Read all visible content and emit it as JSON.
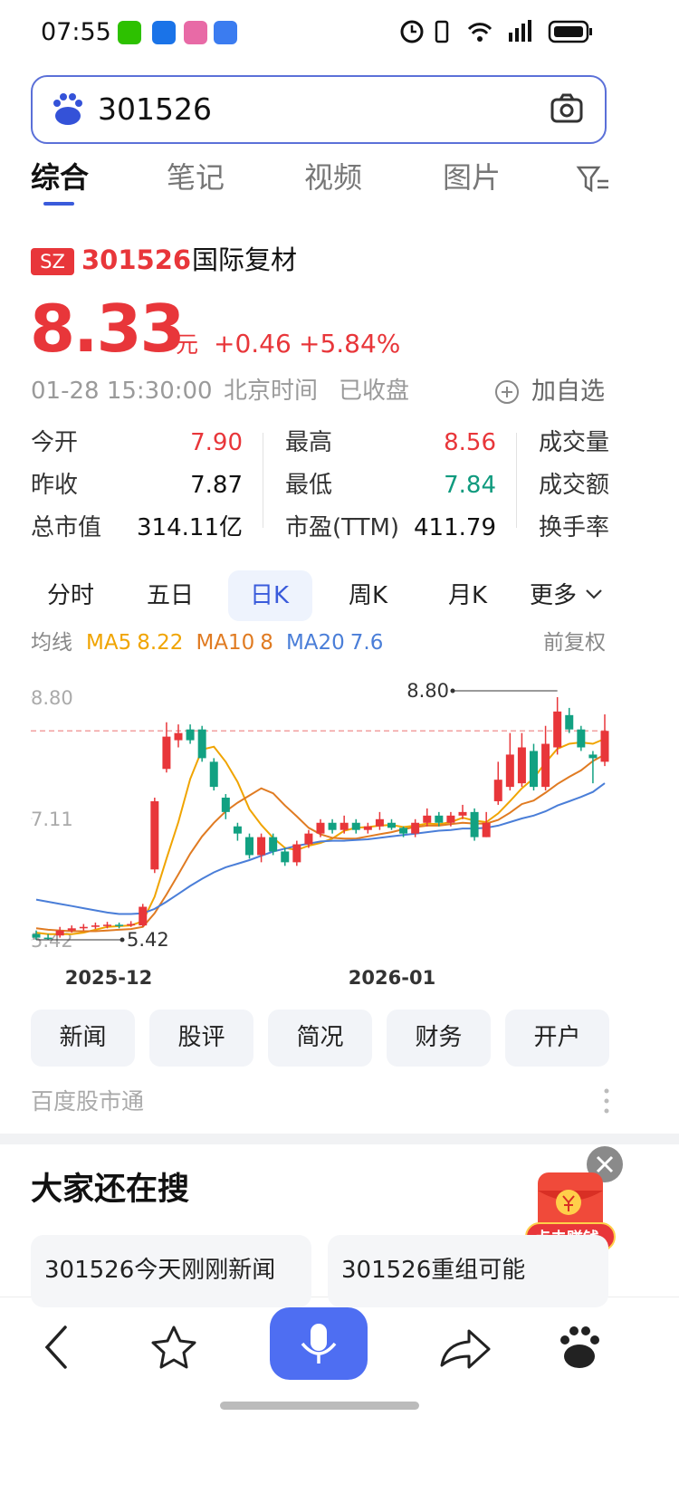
{
  "status_bar": {
    "time": "07:55"
  },
  "search": {
    "query": "301526"
  },
  "tabs": [
    "综合",
    "笔记",
    "视频",
    "图片"
  ],
  "stock": {
    "market": "SZ",
    "code": "301526",
    "name": "国际复材",
    "price": "8.33",
    "unit": "元",
    "change": "+0.46",
    "change_pct": "+5.84%",
    "time": "01-28 15:30:00",
    "timezone": "北京时间",
    "status": "已收盘",
    "watch": "加自选",
    "stats": [
      {
        "label": "今开",
        "value": "7.90",
        "color": "#e8363a"
      },
      {
        "label": "最高",
        "value": "8.56",
        "color": "#e8363a"
      },
      {
        "label": "成交量"
      },
      {
        "label": "昨收",
        "value": "7.87",
        "color": "#111111"
      },
      {
        "label": "最低",
        "value": "7.84",
        "color": "#0f9a7e"
      },
      {
        "label": "成交额"
      },
      {
        "label": "总市值",
        "value": "314.11亿",
        "color": "#111111"
      },
      {
        "label": "市盈(TTM)",
        "value": "411.79",
        "color": "#111111"
      },
      {
        "label": "换手率"
      }
    ]
  },
  "chart_tabs": {
    "items": [
      "分时",
      "五日",
      "日K",
      "周K",
      "月K",
      "更多"
    ],
    "active": 2
  },
  "chart_data": {
    "type": "candlestick",
    "ma_label": "均线",
    "adjust": "前复权",
    "up_color": "#e8363a",
    "down_color": "#12a182",
    "open": [
      5.5,
      5.45,
      5.48,
      5.55,
      5.58,
      5.6,
      5.62,
      5.63,
      5.62,
      5.62,
      6.4,
      7.8,
      8.2,
      8.35,
      8.35,
      7.9,
      7.4,
      7.0,
      6.85,
      6.6,
      6.85,
      6.65,
      6.5,
      6.75,
      6.9,
      7.05,
      6.95,
      7.05,
      6.95,
      7.0,
      7.05,
      6.98,
      6.9,
      7.05,
      7.15,
      7.05,
      7.15,
      7.2,
      6.85,
      7.35,
      7.55,
      7.6,
      8.05,
      7.55,
      8.1,
      8.55,
      8.35,
      8.0,
      7.9
    ],
    "close": [
      5.45,
      5.44,
      5.55,
      5.58,
      5.6,
      5.62,
      5.63,
      5.62,
      5.64,
      5.88,
      7.35,
      8.25,
      8.3,
      8.2,
      7.95,
      7.55,
      7.2,
      6.9,
      6.6,
      6.85,
      6.65,
      6.5,
      6.75,
      6.9,
      7.05,
      6.95,
      7.05,
      6.95,
      7.0,
      7.1,
      6.98,
      6.9,
      7.05,
      7.15,
      7.05,
      7.15,
      7.2,
      6.85,
      7.05,
      7.65,
      8.0,
      8.1,
      7.55,
      8.15,
      8.6,
      8.35,
      8.1,
      7.95,
      8.33
    ],
    "high": [
      5.55,
      5.5,
      5.6,
      5.62,
      5.64,
      5.66,
      5.67,
      5.66,
      5.68,
      5.92,
      7.4,
      8.45,
      8.42,
      8.42,
      8.4,
      7.95,
      7.45,
      7.05,
      6.9,
      6.9,
      6.9,
      6.7,
      6.8,
      6.95,
      7.1,
      7.1,
      7.15,
      7.1,
      7.05,
      7.2,
      7.1,
      7.0,
      7.1,
      7.25,
      7.2,
      7.2,
      7.3,
      7.25,
      7.2,
      7.9,
      8.3,
      8.3,
      8.15,
      8.4,
      8.8,
      8.65,
      8.4,
      8.05,
      8.56
    ],
    "low": [
      5.42,
      5.42,
      5.45,
      5.52,
      5.55,
      5.57,
      5.58,
      5.58,
      5.6,
      5.6,
      6.35,
      7.75,
      8.1,
      8.15,
      7.9,
      7.5,
      7.1,
      6.8,
      6.55,
      6.5,
      6.6,
      6.45,
      6.45,
      6.7,
      6.85,
      6.9,
      6.9,
      6.9,
      6.9,
      6.95,
      6.95,
      6.85,
      6.85,
      7.0,
      7.0,
      7.0,
      7.1,
      6.8,
      6.85,
      7.3,
      7.5,
      7.55,
      7.5,
      7.5,
      8.0,
      8.3,
      8.05,
      7.6,
      7.84
    ],
    "series": [
      {
        "name": "MA5",
        "color": "#f0a400",
        "current": 8.22,
        "values": [
          5.52,
          5.5,
          5.5,
          5.5,
          5.52,
          5.56,
          5.6,
          5.61,
          5.62,
          5.68,
          6.02,
          6.55,
          7.06,
          7.66,
          8.07,
          8.11,
          7.9,
          7.62,
          7.24,
          7.02,
          6.84,
          6.7,
          6.67,
          6.73,
          6.77,
          6.83,
          6.94,
          6.98,
          6.99,
          7.01,
          7.02,
          6.99,
          7.01,
          7.04,
          7.03,
          7.06,
          7.12,
          7.08,
          7.06,
          7.18,
          7.35,
          7.53,
          7.67,
          7.89,
          8.08,
          8.15,
          8.17,
          8.15,
          8.22
        ]
      },
      {
        "name": "MA10",
        "color": "#e07b22",
        "current": 8,
        "values": [
          5.58,
          5.56,
          5.55,
          5.54,
          5.54,
          5.54,
          5.55,
          5.56,
          5.57,
          5.6,
          5.79,
          6.05,
          6.33,
          6.62,
          6.86,
          7.05,
          7.21,
          7.33,
          7.43,
          7.53,
          7.46,
          7.29,
          7.14,
          6.98,
          6.89,
          6.84,
          6.83,
          6.83,
          6.86,
          6.89,
          6.92,
          6.96,
          6.99,
          7.01,
          7.01,
          7.03,
          7.05,
          7.04,
          7.04,
          7.09,
          7.19,
          7.31,
          7.36,
          7.47,
          7.59,
          7.69,
          7.78,
          7.91,
          8.0
        ]
      },
      {
        "name": "MA20",
        "color": "#4a7ed8",
        "current": 7.6,
        "values": [
          5.98,
          5.95,
          5.92,
          5.89,
          5.86,
          5.83,
          5.8,
          5.78,
          5.78,
          5.79,
          5.85,
          5.95,
          6.06,
          6.17,
          6.27,
          6.36,
          6.43,
          6.48,
          6.53,
          6.59,
          6.65,
          6.69,
          6.73,
          6.76,
          6.79,
          6.8,
          6.8,
          6.81,
          6.82,
          6.84,
          6.86,
          6.88,
          6.9,
          6.92,
          6.94,
          6.95,
          6.97,
          6.97,
          6.98,
          7.01,
          7.06,
          7.11,
          7.15,
          7.21,
          7.29,
          7.35,
          7.41,
          7.48,
          7.6
        ]
      }
    ],
    "ylim": [
      5.42,
      8.8
    ],
    "yticks": [
      {
        "value": 8.8,
        "label": "8.80"
      },
      7.11,
      5.42
    ],
    "reference_line": 8.33,
    "high_label": {
      "value": 8.8,
      "label": "8.80"
    },
    "low_label": 5.42,
    "xtick_labels": [
      "2025-12",
      "2026-01"
    ]
  },
  "actions": [
    "新闻",
    "股评",
    "简况",
    "财务",
    "开户"
  ],
  "source": "百度股市通",
  "related": {
    "title": "大家还在搜",
    "items": [
      "301526今天刚刚新闻",
      "301526重组可能"
    ]
  },
  "red_packet": {
    "label": "点击赚钱"
  }
}
